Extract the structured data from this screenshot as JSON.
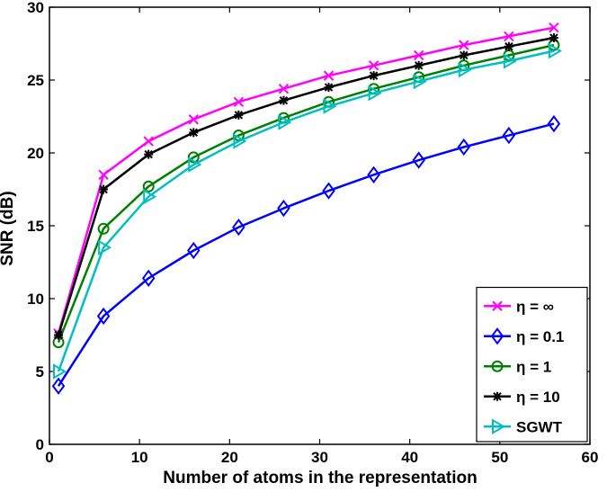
{
  "chart_data": {
    "type": "line",
    "xlabel": "Number of atoms in the representation",
    "ylabel": "SNR (dB)",
    "xlim": [
      0,
      60
    ],
    "ylim": [
      0,
      30
    ],
    "xticks": [
      0,
      10,
      20,
      30,
      40,
      50,
      60
    ],
    "yticks": [
      0,
      5,
      10,
      15,
      20,
      25,
      30
    ],
    "grid": false,
    "legend_position": "bottom-right",
    "x": [
      1,
      6,
      11,
      16,
      21,
      26,
      31,
      36,
      41,
      46,
      51,
      56
    ],
    "series": [
      {
        "name": "η = ∞",
        "color": "#ff00ff",
        "marker": "x",
        "values": [
          7.6,
          18.5,
          20.8,
          22.3,
          23.5,
          24.4,
          25.3,
          26.0,
          26.7,
          27.4,
          28.0,
          28.6
        ]
      },
      {
        "name": "η = 0.1",
        "color": "#0000ff",
        "marker": "diamond",
        "values": [
          4.0,
          8.8,
          11.4,
          13.3,
          14.9,
          16.2,
          17.4,
          18.5,
          19.5,
          20.4,
          21.2,
          22.0
        ]
      },
      {
        "name": "η = 1",
        "color": "#008000",
        "marker": "circle",
        "values": [
          7.0,
          14.8,
          17.7,
          19.7,
          21.2,
          22.4,
          23.5,
          24.4,
          25.2,
          26.0,
          26.7,
          27.4
        ]
      },
      {
        "name": "η = 10",
        "color": "#000000",
        "marker": "star",
        "values": [
          7.5,
          17.5,
          19.9,
          21.4,
          22.6,
          23.6,
          24.5,
          25.3,
          26.0,
          26.7,
          27.3,
          27.9
        ]
      },
      {
        "name": "SGWT",
        "color": "#00bfbf",
        "marker": "triangle-right",
        "values": [
          5.0,
          13.5,
          17.0,
          19.2,
          20.8,
          22.1,
          23.2,
          24.1,
          24.9,
          25.7,
          26.3,
          27.0
        ]
      }
    ]
  }
}
